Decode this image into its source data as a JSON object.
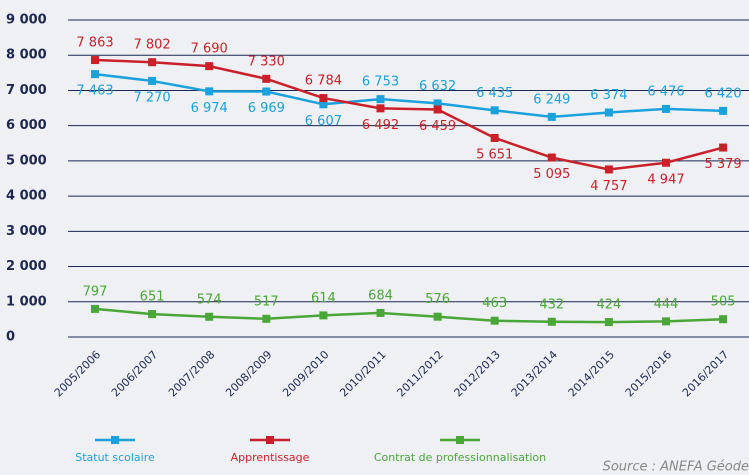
{
  "chart_data": {
    "type": "line",
    "categories": [
      "2005/2006",
      "2006/2007",
      "2007/2008",
      "2008/2009",
      "2009/2010",
      "2010/2011",
      "2011/2012",
      "2012/2013",
      "2013/2014",
      "2014/2015",
      "2015/2016",
      "2016/2017"
    ],
    "series": [
      {
        "name": "Statut scolaire",
        "color": "#1ba1dc",
        "values": [
          7463,
          7270,
          6974,
          6969,
          6607,
          6753,
          6632,
          6435,
          6249,
          6374,
          6476,
          6420
        ],
        "value_labels": [
          "7 463",
          "7 270",
          "6 974",
          "6 969",
          "6 607",
          "6 753",
          "6 632",
          "6 435",
          "6 249",
          "6 374",
          "6 476",
          "6 420"
        ]
      },
      {
        "name": "Apprentissage",
        "color": "#c9202a",
        "values": [
          7863,
          7802,
          7690,
          7330,
          6784,
          6492,
          6459,
          5651,
          5095,
          4757,
          4947,
          5379
        ],
        "value_labels": [
          "7 863",
          "7 802",
          "7 690",
          "7 330",
          "6 784",
          "6 492",
          "6 459",
          "5 651",
          "5 095",
          "4 757",
          "4 947",
          "5 379"
        ]
      },
      {
        "name": "Contrat de professionnalisation",
        "color": "#4aa637",
        "values": [
          797,
          651,
          574,
          517,
          614,
          684,
          576,
          463,
          432,
          424,
          444,
          505
        ]
      }
    ],
    "ylim": [
      0,
      9000
    ],
    "yticks": [
      0,
      {
        "value": 1000,
        "label": "1 000"
      },
      {
        "value": 2000,
        "label": "2 000"
      },
      {
        "value": 3000,
        "label": "3 000"
      },
      {
        "value": 4000,
        "label": "4 000"
      },
      {
        "value": 5000,
        "label": "5 000"
      },
      {
        "value": 6000,
        "label": "6 000"
      },
      {
        "value": 7000,
        "label": "7 000"
      },
      {
        "value": 8000,
        "label": "8 000"
      },
      {
        "value": 9000,
        "label": "9 000"
      }
    ],
    "grid": true,
    "legend": "bottom",
    "source": "Source : ANEFA Géode"
  }
}
